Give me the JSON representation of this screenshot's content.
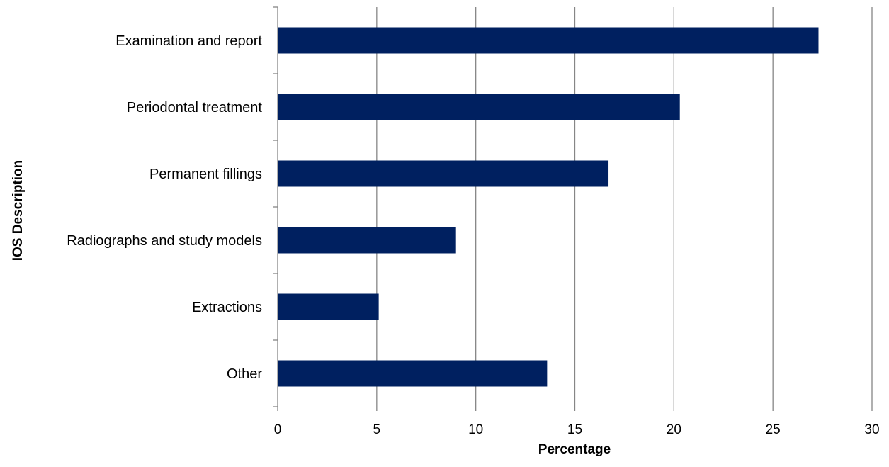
{
  "chart_data": {
    "type": "bar",
    "orientation": "horizontal",
    "categories": [
      "Examination and report",
      "Periodontal treatment",
      "Permanent fillings",
      "Radiographs and study models",
      "Extractions",
      "Other"
    ],
    "values": [
      27.3,
      20.3,
      16.7,
      9.0,
      5.1,
      13.6
    ],
    "xlabel": "Percentage",
    "ylabel": "IOS Description",
    "xlim": [
      0,
      30
    ],
    "xticks": [
      "0",
      "5",
      "10",
      "15",
      "20",
      "25",
      "30"
    ],
    "grid": "vertical",
    "legend": "none",
    "bar_color": "#002060",
    "grid_color": "#868686"
  }
}
